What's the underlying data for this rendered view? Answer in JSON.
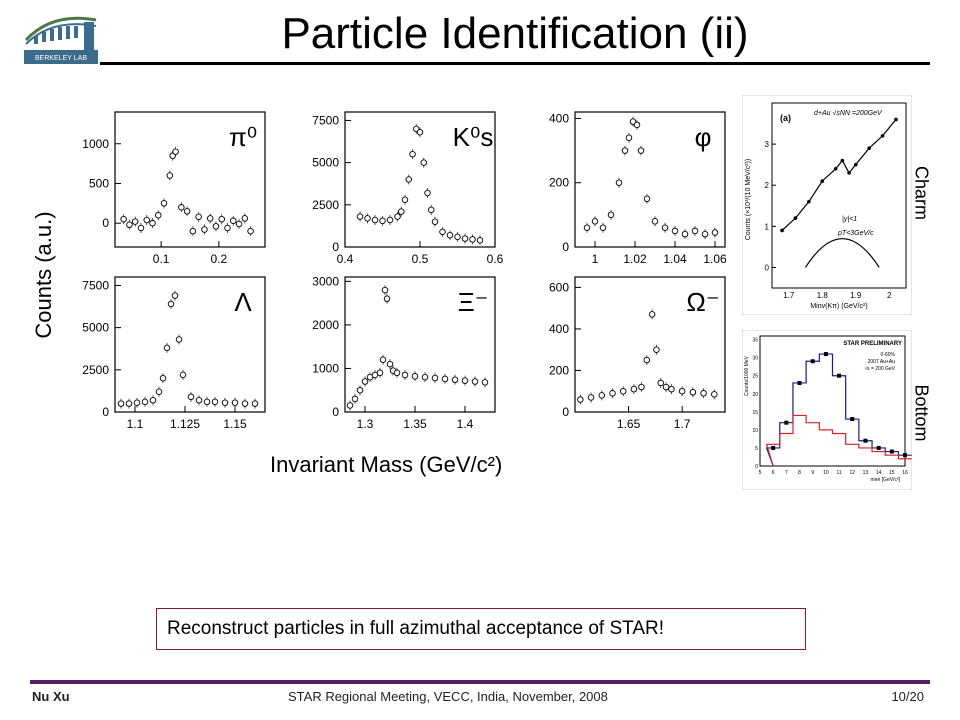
{
  "title": "Particle Identification (ii)",
  "y_axis_label": "Counts (a.u.)",
  "x_axis_label": "Invariant Mass (GeV/c²)",
  "side_labels": {
    "charm": "Charm",
    "bottom": "Bottom"
  },
  "note": "Reconstruct particles in full azimuthal acceptance of STAR!",
  "footer": {
    "author": "Nu Xu",
    "meeting": "STAR Regional Meeting, VECC, India, November, 2008",
    "page": "10/20"
  },
  "logo": {
    "text": "BERKELEY LAB"
  },
  "chart_data": [
    {
      "type": "scatter",
      "particle": "π⁰",
      "ylim": [
        -300,
        1400
      ],
      "xlim": [
        0.02,
        0.28
      ],
      "x_ticks": [
        "0.1",
        "0.2"
      ],
      "y_ticks": [
        "0",
        "500",
        "1000"
      ],
      "x": [
        0.035,
        0.045,
        0.055,
        0.065,
        0.075,
        0.085,
        0.095,
        0.105,
        0.115,
        0.12,
        0.125,
        0.135,
        0.145,
        0.155,
        0.165,
        0.175,
        0.185,
        0.195,
        0.205,
        0.215,
        0.225,
        0.235,
        0.245,
        0.255
      ],
      "y": [
        50,
        -20,
        20,
        -60,
        40,
        0,
        100,
        250,
        600,
        850,
        900,
        200,
        150,
        -100,
        80,
        -80,
        60,
        -40,
        50,
        -60,
        30,
        -10,
        60,
        -100
      ]
    },
    {
      "type": "scatter",
      "particle": "K⁰s",
      "ylim": [
        0,
        8000
      ],
      "xlim": [
        0.4,
        0.6
      ],
      "x_ticks": [
        "0.4",
        "0.5",
        "0.6"
      ],
      "y_ticks": [
        "0",
        "2500",
        "5000",
        "7500"
      ],
      "x": [
        0.42,
        0.43,
        0.44,
        0.45,
        0.46,
        0.47,
        0.475,
        0.48,
        0.485,
        0.49,
        0.495,
        0.5,
        0.505,
        0.51,
        0.515,
        0.52,
        0.53,
        0.54,
        0.55,
        0.56,
        0.57,
        0.58
      ],
      "y": [
        1800,
        1700,
        1600,
        1550,
        1600,
        1800,
        2100,
        2800,
        4000,
        5500,
        7000,
        6800,
        5000,
        3200,
        2200,
        1500,
        900,
        700,
        600,
        500,
        450,
        400
      ]
    },
    {
      "type": "scatter",
      "particle": "φ",
      "ylim": [
        0,
        420
      ],
      "xlim": [
        0.99,
        1.065
      ],
      "x_ticks": [
        "1",
        "1.02",
        "1.04",
        "1.06"
      ],
      "y_ticks": [
        "0",
        "200",
        "400"
      ],
      "x": [
        0.996,
        1.0,
        1.004,
        1.008,
        1.012,
        1.015,
        1.017,
        1.019,
        1.021,
        1.023,
        1.026,
        1.03,
        1.035,
        1.04,
        1.045,
        1.05,
        1.055,
        1.06
      ],
      "y": [
        60,
        80,
        60,
        100,
        200,
        300,
        340,
        390,
        380,
        300,
        150,
        80,
        60,
        50,
        40,
        50,
        40,
        45
      ]
    },
    {
      "type": "scatter",
      "particle": "Λ",
      "ylim": [
        0,
        8000
      ],
      "xlim": [
        1.09,
        1.165
      ],
      "x_ticks": [
        "1.1",
        "1.125",
        "1.15"
      ],
      "y_ticks": [
        "0",
        "2500",
        "5000",
        "7500"
      ],
      "x": [
        1.093,
        1.097,
        1.101,
        1.105,
        1.109,
        1.112,
        1.114,
        1.116,
        1.118,
        1.12,
        1.122,
        1.124,
        1.128,
        1.132,
        1.136,
        1.14,
        1.145,
        1.15,
        1.155,
        1.16
      ],
      "y": [
        500,
        500,
        550,
        600,
        700,
        1200,
        2000,
        3800,
        6400,
        6900,
        4300,
        2200,
        900,
        700,
        600,
        600,
        550,
        550,
        500,
        500
      ]
    },
    {
      "type": "scatter",
      "particle": "Ξ⁻",
      "ylim": [
        0,
        3100
      ],
      "xlim": [
        1.28,
        1.43
      ],
      "x_ticks": [
        "1.3",
        "1.35",
        "1.4"
      ],
      "y_ticks": [
        "0",
        "1000",
        "2000",
        "3000"
      ],
      "x": [
        1.285,
        1.29,
        1.295,
        1.3,
        1.305,
        1.31,
        1.315,
        1.318,
        1.32,
        1.322,
        1.325,
        1.328,
        1.332,
        1.34,
        1.35,
        1.36,
        1.37,
        1.38,
        1.39,
        1.4,
        1.41,
        1.42
      ],
      "y": [
        150,
        300,
        500,
        700,
        800,
        850,
        900,
        1200,
        2800,
        2600,
        1100,
        950,
        900,
        850,
        820,
        800,
        780,
        760,
        740,
        720,
        700,
        680
      ]
    },
    {
      "type": "scatter",
      "particle": "Ω⁻",
      "ylim": [
        0,
        650
      ],
      "xlim": [
        1.6,
        1.74
      ],
      "x_ticks": [
        "1.65",
        "1.7"
      ],
      "y_ticks": [
        "0",
        "200",
        "400",
        "600"
      ],
      "x": [
        1.605,
        1.615,
        1.625,
        1.635,
        1.645,
        1.655,
        1.662,
        1.667,
        1.672,
        1.676,
        1.68,
        1.685,
        1.69,
        1.7,
        1.71,
        1.72,
        1.73
      ],
      "y": [
        60,
        70,
        80,
        90,
        100,
        110,
        120,
        250,
        470,
        300,
        140,
        120,
        110,
        100,
        95,
        90,
        85
      ]
    },
    {
      "type": "scatter",
      "particle": "Charm",
      "annotations": [
        "(a)",
        "d+Au √sNN =200GeV",
        "|y|<1",
        "pT<3GeV/c"
      ],
      "xlim": [
        1.65,
        2.05
      ],
      "ylim": [
        -0.5,
        4
      ],
      "x_ticks": [
        "1.7",
        "1.8",
        "1.9",
        "2"
      ],
      "y_ticks": [
        "0",
        "1",
        "2",
        "3"
      ],
      "xlabel": "Minv(Kπ) (GeV/c²)",
      "ylabel": "Counts (×10³/(10 MeV/c²))",
      "x": [
        1.68,
        1.72,
        1.76,
        1.8,
        1.84,
        1.86,
        1.88,
        1.9,
        1.94,
        1.98,
        2.02
      ],
      "y": [
        0.9,
        1.2,
        1.6,
        2.1,
        2.4,
        2.6,
        2.3,
        2.5,
        2.9,
        3.2,
        3.6
      ]
    },
    {
      "type": "bar",
      "particle": "Bottom",
      "title": "STAR PRELIMINARY",
      "legend": [
        "0-60%",
        "2007 Au+Au",
        "√s = 200 GeV"
      ],
      "xlabel": "mee [GeV/c²]",
      "ylabel": "Counts/1000 MeV",
      "ylim": [
        0,
        36
      ],
      "x_ticks": [
        "5",
        "6",
        "7",
        "8",
        "9",
        "10",
        "11",
        "12",
        "13",
        "14",
        "15",
        "16"
      ],
      "y_ticks": [
        "0",
        "5",
        "10",
        "15",
        "20",
        "25",
        "30",
        "35"
      ],
      "categories": [
        "5",
        "6",
        "7",
        "8",
        "9",
        "10",
        "11",
        "12",
        "13",
        "14",
        "15"
      ],
      "series": [
        {
          "values": [
            5,
            12,
            23,
            29,
            31,
            25,
            13,
            7,
            5,
            4,
            3
          ]
        },
        {
          "values": [
            6,
            9,
            14,
            12,
            10,
            9,
            6,
            5,
            4,
            3,
            2
          ]
        }
      ]
    }
  ]
}
